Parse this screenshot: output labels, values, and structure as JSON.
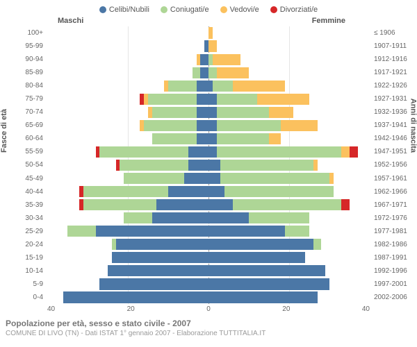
{
  "type": "population-pyramid",
  "legend": [
    {
      "label": "Celibi/Nubili",
      "color": "#4b77a6"
    },
    {
      "label": "Coniugati/e",
      "color": "#aed696"
    },
    {
      "label": "Vedovi/e",
      "color": "#fbc15e"
    },
    {
      "label": "Divorziati/e",
      "color": "#d62728"
    }
  ],
  "header_left": "Maschi",
  "header_right": "Femmine",
  "ylabel_left": "Fasce di età",
  "ylabel_right": "Anni di nascita",
  "x_max": 40,
  "x_ticks": [
    40,
    20,
    0,
    20,
    40
  ],
  "background": "#ffffff",
  "grid_color": "#e5e5e5",
  "center_line_color": "#999999",
  "caption": "Popolazione per età, sesso e stato civile - 2007",
  "subcaption": "COMUNE DI LIVO (TN) - Dati ISTAT 1° gennaio 2007 - Elaborazione TUTTITALIA.IT",
  "rows": [
    {
      "age": "100+",
      "birth": "≤ 1906",
      "m": [
        0,
        0,
        0,
        0
      ],
      "f": [
        0,
        0,
        1,
        0
      ]
    },
    {
      "age": "95-99",
      "birth": "1907-1911",
      "m": [
        1,
        0,
        0,
        0
      ],
      "f": [
        0,
        0,
        2,
        0
      ]
    },
    {
      "age": "90-94",
      "birth": "1912-1916",
      "m": [
        2,
        0,
        1,
        0
      ],
      "f": [
        0,
        1,
        7,
        0
      ]
    },
    {
      "age": "85-89",
      "birth": "1917-1921",
      "m": [
        2,
        2,
        0,
        0
      ],
      "f": [
        0,
        2,
        8,
        0
      ]
    },
    {
      "age": "80-84",
      "birth": "1922-1926",
      "m": [
        3,
        7,
        1,
        0
      ],
      "f": [
        1,
        5,
        13,
        0
      ]
    },
    {
      "age": "75-79",
      "birth": "1927-1931",
      "m": [
        3,
        12,
        1,
        1
      ],
      "f": [
        2,
        10,
        13,
        0
      ]
    },
    {
      "age": "70-74",
      "birth": "1932-1936",
      "m": [
        3,
        11,
        1,
        0
      ],
      "f": [
        2,
        13,
        6,
        0
      ]
    },
    {
      "age": "65-69",
      "birth": "1937-1941",
      "m": [
        3,
        13,
        1,
        0
      ],
      "f": [
        2,
        16,
        9,
        0
      ]
    },
    {
      "age": "60-64",
      "birth": "1942-1946",
      "m": [
        3,
        11,
        0,
        0
      ],
      "f": [
        2,
        13,
        3,
        0
      ]
    },
    {
      "age": "55-59",
      "birth": "1947-1951",
      "m": [
        5,
        22,
        0,
        1
      ],
      "f": [
        2,
        31,
        2,
        2
      ]
    },
    {
      "age": "50-54",
      "birth": "1952-1956",
      "m": [
        5,
        17,
        0,
        1
      ],
      "f": [
        3,
        23,
        1,
        0
      ]
    },
    {
      "age": "45-49",
      "birth": "1957-1961",
      "m": [
        6,
        15,
        0,
        0
      ],
      "f": [
        3,
        27,
        1,
        0
      ]
    },
    {
      "age": "40-44",
      "birth": "1962-1966",
      "m": [
        10,
        21,
        0,
        1
      ],
      "f": [
        4,
        27,
        0,
        0
      ]
    },
    {
      "age": "35-39",
      "birth": "1967-1971",
      "m": [
        13,
        18,
        0,
        1
      ],
      "f": [
        6,
        27,
        0,
        2
      ]
    },
    {
      "age": "30-34",
      "birth": "1972-1976",
      "m": [
        14,
        7,
        0,
        0
      ],
      "f": [
        10,
        15,
        0,
        0
      ]
    },
    {
      "age": "25-29",
      "birth": "1977-1981",
      "m": [
        28,
        7,
        0,
        0
      ],
      "f": [
        19,
        6,
        0,
        0
      ]
    },
    {
      "age": "20-24",
      "birth": "1982-1986",
      "m": [
        23,
        1,
        0,
        0
      ],
      "f": [
        26,
        2,
        0,
        0
      ]
    },
    {
      "age": "15-19",
      "birth": "1987-1991",
      "m": [
        24,
        0,
        0,
        0
      ],
      "f": [
        24,
        0,
        0,
        0
      ]
    },
    {
      "age": "10-14",
      "birth": "1992-1996",
      "m": [
        25,
        0,
        0,
        0
      ],
      "f": [
        29,
        0,
        0,
        0
      ]
    },
    {
      "age": "5-9",
      "birth": "1997-2001",
      "m": [
        27,
        0,
        0,
        0
      ],
      "f": [
        30,
        0,
        0,
        0
      ]
    },
    {
      "age": "0-4",
      "birth": "2002-2006",
      "m": [
        36,
        0,
        0,
        0
      ],
      "f": [
        27,
        0,
        0,
        0
      ]
    }
  ]
}
